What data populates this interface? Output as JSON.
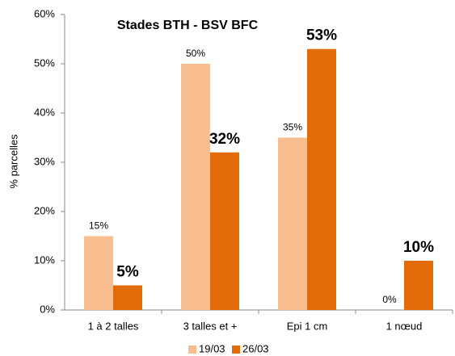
{
  "chart_data": {
    "type": "bar",
    "title": "Stades BTH - BSV BFC",
    "y_label": "% parcelles",
    "categories": [
      "1 à 2 talles",
      "3 talles et +",
      "Epi 1 cm",
      "1 nœud"
    ],
    "series": [
      {
        "name": "19/03",
        "color": "#f9be8f",
        "values": [
          15,
          50,
          35,
          0
        ],
        "value_labels": [
          "15%",
          "50%",
          "35%",
          "0%"
        ]
      },
      {
        "name": "26/03",
        "color": "#e36c0a",
        "values": [
          5,
          32,
          53,
          10
        ],
        "value_labels": [
          "5%",
          "32%",
          "53%",
          "10%"
        ]
      }
    ],
    "ylim": [
      0,
      60
    ],
    "yticks": [
      {
        "value": 0,
        "label": "0%"
      },
      {
        "value": 10,
        "label": "10%"
      },
      {
        "value": 20,
        "label": "20%"
      },
      {
        "value": 30,
        "label": "30%"
      },
      {
        "value": 40,
        "label": "40%"
      },
      {
        "value": 50,
        "label": "50%"
      },
      {
        "value": 60,
        "label": "60%"
      }
    ],
    "grid": false,
    "legend": "bottom"
  }
}
